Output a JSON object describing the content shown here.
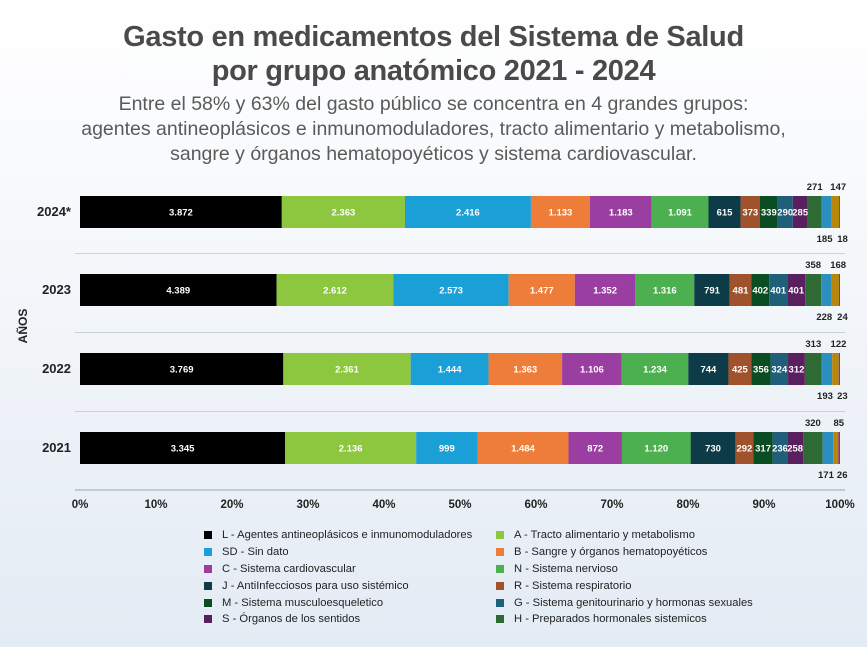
{
  "header": {
    "title_line1": "Gasto en medicamentos del Sistema de Salud",
    "title_line2": "por grupo anatómico 2021 - 2024",
    "subtitle_line1": "Entre el 58% y 63% del gasto público se concentra en 4 grandes grupos:",
    "subtitle_line2": "agentes antineoplásicos e inmunomoduladores, tracto alimentario y metabolismo,",
    "subtitle_line3": "sangre y órganos hematopoyéticos y sistema cardiovascular."
  },
  "chart_data": {
    "type": "bar",
    "orientation": "horizontal",
    "stacking": "percent",
    "ylabel": "AÑOS",
    "xlim": [
      0,
      100
    ],
    "x_ticks": [
      "0%",
      "10%",
      "20%",
      "30%",
      "40%",
      "50%",
      "60%",
      "70%",
      "80%",
      "90%",
      "100%"
    ],
    "categories": [
      "2024*",
      "2023",
      "2022",
      "2021"
    ],
    "series": [
      {
        "code": "L",
        "legend": "L - Agentes antineoplásicos e inmunomoduladores",
        "color": "#000000",
        "text_color": "#ffffff",
        "values": [
          3872,
          4389,
          3769,
          3345
        ],
        "labels": [
          "3.872",
          "4.389",
          "3.769",
          "3.345"
        ]
      },
      {
        "code": "A",
        "legend": "A - Tracto alimentario y metabolismo",
        "color": "#8dc63f",
        "text_color": "#ffffff",
        "values": [
          2363,
          2612,
          2361,
          2136
        ],
        "labels": [
          "2.363",
          "2.612",
          "2.361",
          "2.136"
        ]
      },
      {
        "code": "SD",
        "legend": "SD - Sin dato",
        "color": "#1a9fd6",
        "text_color": "#ffffff",
        "values": [
          2416,
          2573,
          1444,
          999
        ],
        "labels": [
          "2.416",
          "2.573",
          "1.444",
          "999"
        ]
      },
      {
        "code": "B",
        "legend": "B - Sangre y órganos hematopoyéticos",
        "color": "#ef7d3a",
        "text_color": "#ffffff",
        "values": [
          1133,
          1477,
          1363,
          1484
        ],
        "labels": [
          "1.133",
          "1.477",
          "1.363",
          "1.484"
        ]
      },
      {
        "code": "C",
        "legend": "C - Sistema cardiovascular",
        "color": "#9b3ea1",
        "text_color": "#ffffff",
        "values": [
          1183,
          1352,
          1106,
          872
        ],
        "labels": [
          "1.183",
          "1.352",
          "1.106",
          "872"
        ]
      },
      {
        "code": "N",
        "legend": "N - Sistema nervioso",
        "color": "#4caf50",
        "text_color": "#ffffff",
        "values": [
          1091,
          1316,
          1234,
          1120
        ],
        "labels": [
          "1.091",
          "1.316",
          "1.234",
          "1.120"
        ]
      },
      {
        "code": "J",
        "legend": "J - AntiInfecciosos para uso sistémico",
        "color": "#0d3b47",
        "text_color": "#ffffff",
        "values": [
          615,
          791,
          744,
          730
        ],
        "labels": [
          "615",
          "791",
          "744",
          "730"
        ]
      },
      {
        "code": "R",
        "legend": "R - Sistema respiratorio",
        "color": "#a0522d",
        "text_color": "#ffffff",
        "values": [
          373,
          481,
          425,
          292
        ],
        "labels": [
          "373",
          "481",
          "425",
          "292"
        ]
      },
      {
        "code": "M",
        "legend": "M - Sistema musculoesqueletico",
        "color": "#0b4d22",
        "text_color": "#ffffff",
        "values": [
          339,
          402,
          356,
          317
        ],
        "labels": [
          "339",
          "402",
          "356",
          "317"
        ]
      },
      {
        "code": "G",
        "legend": "G - Sistema genitourinario y hormonas sexuales",
        "color": "#1f5f7a",
        "text_color": "#ffffff",
        "values": [
          290,
          401,
          324,
          236
        ],
        "labels": [
          "290",
          "401",
          "324",
          "236"
        ]
      },
      {
        "code": "S",
        "legend": "S - Órganos de los sentidos",
        "color": "#5a1f5e",
        "text_color": "#ffffff",
        "values": [
          285,
          401,
          312,
          258
        ],
        "labels": [
          "285",
          "401",
          "312",
          "258"
        ]
      },
      {
        "code": "H",
        "legend": "H - Preparados hormonales sistemicos",
        "color": "#2e6b34",
        "text_color": "#ffffff",
        "values": [
          271,
          358,
          313,
          320
        ],
        "labels": [
          "271",
          "358",
          "313",
          "320"
        ]
      },
      {
        "code": "D",
        "legend": "",
        "color": "#2b8fbf",
        "text_color": "#ffffff",
        "values": [
          185,
          228,
          193,
          171
        ],
        "labels": [
          "185",
          "228",
          "193",
          "171"
        ]
      },
      {
        "code": "V",
        "legend": "",
        "color": "#b8860b",
        "text_color": "#ffffff",
        "values": [
          147,
          168,
          122,
          85
        ],
        "labels": [
          "147",
          "168",
          "122",
          "85"
        ]
      },
      {
        "code": "P",
        "legend": "",
        "color": "#7a3b8f",
        "text_color": "#ffffff",
        "values": [
          18,
          24,
          23,
          26
        ],
        "labels": [
          "18",
          "24",
          "23",
          "26"
        ]
      }
    ]
  }
}
